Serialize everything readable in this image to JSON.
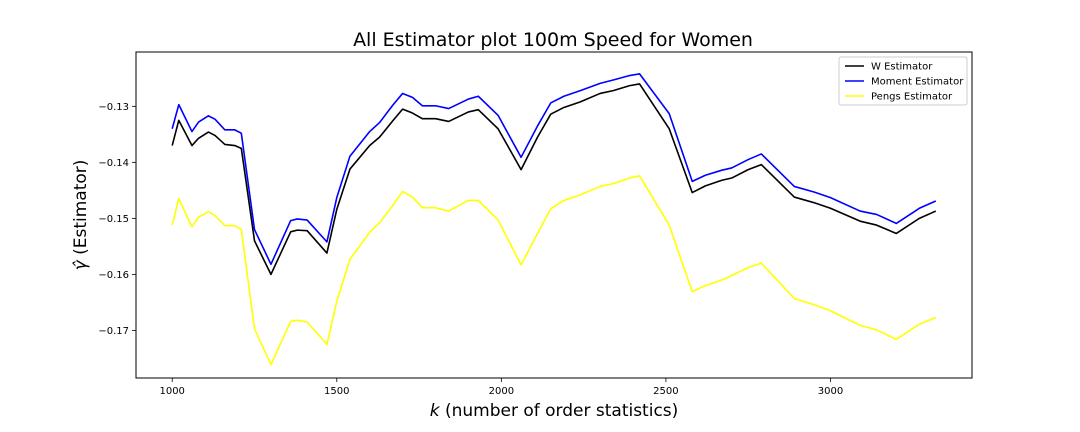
{
  "chart_data": {
    "type": "line",
    "title": "All Estimator plot 100m Speed for Women",
    "xlabel_var": "k",
    "xlabel_rest": " (number of order statistics)",
    "ylabel_var": "γ̂",
    "ylabel_rest": " (Estimator)",
    "xlim": [
      890,
      3430
    ],
    "ylim": [
      -0.1785,
      -0.1203
    ],
    "x_ticks": [
      1000,
      1500,
      2000,
      2500,
      3000
    ],
    "y_ticks": [
      -0.17,
      -0.16,
      -0.15,
      -0.14,
      -0.13
    ],
    "y_tick_labels": [
      "−0.17",
      "−0.16",
      "−0.15",
      "−0.14",
      "−0.13"
    ],
    "legend_position": "upper right",
    "series": [
      {
        "name": "W Estimator",
        "color": "#000000",
        "x": [
          1000,
          1020,
          1060,
          1080,
          1110,
          1130,
          1160,
          1190,
          1210,
          1250,
          1300,
          1360,
          1380,
          1410,
          1470,
          1500,
          1540,
          1600,
          1630,
          1670,
          1700,
          1730,
          1760,
          1800,
          1840,
          1900,
          1930,
          1990,
          2060,
          2110,
          2150,
          2190,
          2240,
          2300,
          2340,
          2390,
          2420,
          2510,
          2580,
          2620,
          2670,
          2700,
          2750,
          2790,
          2890,
          2950,
          3000,
          3090,
          3140,
          3200,
          3270,
          3320
        ],
        "values": [
          -0.137,
          -0.1325,
          -0.137,
          -0.1357,
          -0.1346,
          -0.1352,
          -0.1368,
          -0.137,
          -0.1375,
          -0.154,
          -0.16,
          -0.1524,
          -0.1521,
          -0.1522,
          -0.1562,
          -0.1484,
          -0.1412,
          -0.137,
          -0.1355,
          -0.1326,
          -0.1305,
          -0.1312,
          -0.1322,
          -0.1322,
          -0.1327,
          -0.131,
          -0.1306,
          -0.134,
          -0.1413,
          -0.1355,
          -0.1314,
          -0.1302,
          -0.1292,
          -0.1277,
          -0.1272,
          -0.1263,
          -0.126,
          -0.134,
          -0.1454,
          -0.1442,
          -0.1432,
          -0.1428,
          -0.1413,
          -0.1404,
          -0.1462,
          -0.1472,
          -0.1482,
          -0.1505,
          -0.1512,
          -0.1527,
          -0.15,
          -0.1487
        ]
      },
      {
        "name": "Moment Estimator",
        "color": "#0000ff",
        "x": [
          1000,
          1020,
          1060,
          1080,
          1110,
          1130,
          1160,
          1190,
          1210,
          1250,
          1300,
          1360,
          1380,
          1410,
          1470,
          1500,
          1540,
          1600,
          1630,
          1670,
          1700,
          1730,
          1760,
          1800,
          1840,
          1900,
          1930,
          1990,
          2060,
          2110,
          2150,
          2190,
          2240,
          2300,
          2340,
          2390,
          2420,
          2510,
          2580,
          2620,
          2670,
          2700,
          2750,
          2790,
          2890,
          2950,
          3000,
          3090,
          3140,
          3200,
          3270,
          3320
        ],
        "values": [
          -0.134,
          -0.1297,
          -0.1345,
          -0.1328,
          -0.1317,
          -0.1323,
          -0.1342,
          -0.1342,
          -0.1348,
          -0.152,
          -0.1582,
          -0.1504,
          -0.1501,
          -0.1503,
          -0.1542,
          -0.1463,
          -0.1389,
          -0.1345,
          -0.1329,
          -0.1298,
          -0.1277,
          -0.1284,
          -0.1299,
          -0.1299,
          -0.1304,
          -0.1287,
          -0.1282,
          -0.1316,
          -0.1391,
          -0.1335,
          -0.1294,
          -0.1282,
          -0.1272,
          -0.1259,
          -0.1253,
          -0.1245,
          -0.1242,
          -0.1313,
          -0.1434,
          -0.1423,
          -0.1414,
          -0.141,
          -0.1395,
          -0.1385,
          -0.1443,
          -0.1453,
          -0.1463,
          -0.1487,
          -0.1493,
          -0.1509,
          -0.1482,
          -0.1469
        ]
      },
      {
        "name": "Pengs Estimator",
        "color": "#ffff00",
        "x": [
          1000,
          1020,
          1060,
          1080,
          1110,
          1130,
          1160,
          1190,
          1210,
          1250,
          1300,
          1360,
          1380,
          1410,
          1470,
          1500,
          1540,
          1600,
          1630,
          1670,
          1700,
          1730,
          1760,
          1800,
          1840,
          1900,
          1930,
          1990,
          2060,
          2110,
          2150,
          2190,
          2240,
          2300,
          2340,
          2390,
          2420,
          2510,
          2580,
          2620,
          2670,
          2700,
          2750,
          2790,
          2890,
          2950,
          3000,
          3090,
          3140,
          3200,
          3270,
          3320
        ],
        "values": [
          -0.1512,
          -0.1465,
          -0.1515,
          -0.1498,
          -0.1488,
          -0.1495,
          -0.1513,
          -0.1513,
          -0.152,
          -0.1697,
          -0.1761,
          -0.1684,
          -0.1682,
          -0.1685,
          -0.1725,
          -0.1648,
          -0.1573,
          -0.1525,
          -0.1508,
          -0.1477,
          -0.1452,
          -0.1462,
          -0.1481,
          -0.1481,
          -0.1487,
          -0.1468,
          -0.1468,
          -0.1503,
          -0.1583,
          -0.1527,
          -0.1483,
          -0.1468,
          -0.1458,
          -0.1443,
          -0.1438,
          -0.1428,
          -0.1424,
          -0.1512,
          -0.1631,
          -0.162,
          -0.161,
          -0.1602,
          -0.1588,
          -0.158,
          -0.1643,
          -0.1654,
          -0.1665,
          -0.1691,
          -0.1699,
          -0.1716,
          -0.1689,
          -0.1677
        ]
      }
    ]
  }
}
